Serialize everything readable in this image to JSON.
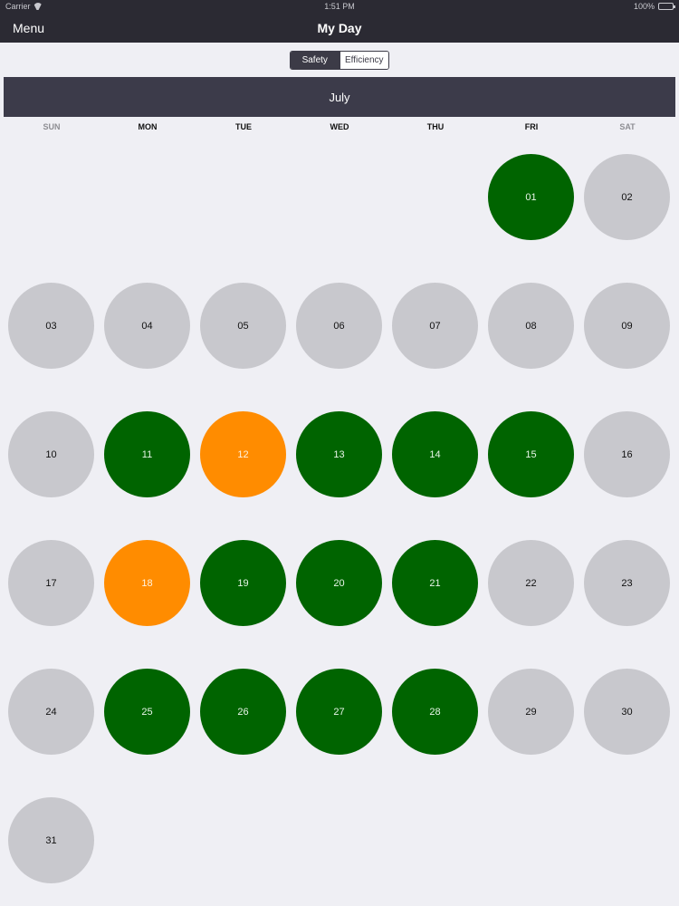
{
  "status_bar": {
    "carrier": "Carrier",
    "time": "1:51 PM",
    "battery": "100%"
  },
  "nav": {
    "menu_label": "Menu",
    "title": "My Day"
  },
  "segmented": {
    "options": [
      "Safety",
      "Efficiency"
    ],
    "selected": "Safety"
  },
  "calendar": {
    "month": "July",
    "weekdays": [
      "SUN",
      "MON",
      "TUE",
      "WED",
      "THU",
      "FRI",
      "SAT"
    ],
    "colors": {
      "green": "#006400",
      "orange": "#ff8c00",
      "gray": "#c8c8cd"
    },
    "days": [
      {
        "label": "01",
        "status": "green",
        "week": 0,
        "dow": 5
      },
      {
        "label": "02",
        "status": "gray",
        "week": 0,
        "dow": 6
      },
      {
        "label": "03",
        "status": "gray",
        "week": 1,
        "dow": 0
      },
      {
        "label": "04",
        "status": "gray",
        "week": 1,
        "dow": 1
      },
      {
        "label": "05",
        "status": "gray",
        "week": 1,
        "dow": 2
      },
      {
        "label": "06",
        "status": "gray",
        "week": 1,
        "dow": 3
      },
      {
        "label": "07",
        "status": "gray",
        "week": 1,
        "dow": 4
      },
      {
        "label": "08",
        "status": "gray",
        "week": 1,
        "dow": 5
      },
      {
        "label": "09",
        "status": "gray",
        "week": 1,
        "dow": 6
      },
      {
        "label": "10",
        "status": "gray",
        "week": 2,
        "dow": 0
      },
      {
        "label": "11",
        "status": "green",
        "week": 2,
        "dow": 1
      },
      {
        "label": "12",
        "status": "orange",
        "week": 2,
        "dow": 2
      },
      {
        "label": "13",
        "status": "green",
        "week": 2,
        "dow": 3
      },
      {
        "label": "14",
        "status": "green",
        "week": 2,
        "dow": 4
      },
      {
        "label": "15",
        "status": "green",
        "week": 2,
        "dow": 5
      },
      {
        "label": "16",
        "status": "gray",
        "week": 2,
        "dow": 6
      },
      {
        "label": "17",
        "status": "gray",
        "week": 3,
        "dow": 0
      },
      {
        "label": "18",
        "status": "orange",
        "week": 3,
        "dow": 1
      },
      {
        "label": "19",
        "status": "green",
        "week": 3,
        "dow": 2
      },
      {
        "label": "20",
        "status": "green",
        "week": 3,
        "dow": 3
      },
      {
        "label": "21",
        "status": "green",
        "week": 3,
        "dow": 4
      },
      {
        "label": "22",
        "status": "gray",
        "week": 3,
        "dow": 5
      },
      {
        "label": "23",
        "status": "gray",
        "week": 3,
        "dow": 6
      },
      {
        "label": "24",
        "status": "gray",
        "week": 4,
        "dow": 0
      },
      {
        "label": "25",
        "status": "green",
        "week": 4,
        "dow": 1
      },
      {
        "label": "26",
        "status": "green",
        "week": 4,
        "dow": 2
      },
      {
        "label": "27",
        "status": "green",
        "week": 4,
        "dow": 3
      },
      {
        "label": "28",
        "status": "green",
        "week": 4,
        "dow": 4
      },
      {
        "label": "29",
        "status": "gray",
        "week": 4,
        "dow": 5
      },
      {
        "label": "30",
        "status": "gray",
        "week": 4,
        "dow": 6
      },
      {
        "label": "31",
        "status": "gray",
        "week": 5,
        "dow": 0
      }
    ]
  }
}
